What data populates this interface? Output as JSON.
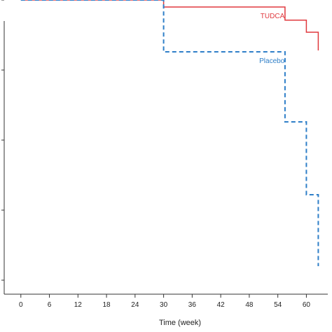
{
  "chart_data": {
    "type": "line",
    "title": "",
    "xlabel": "Time (week)",
    "ylabel": "",
    "xlim": [
      -3.5,
      64.5
    ],
    "ylim": [
      0.0,
      1.0
    ],
    "x_ticks": [
      0,
      6,
      12,
      18,
      24,
      30,
      36,
      42,
      48,
      54,
      60
    ],
    "y_ticks": [
      0.0,
      0.25,
      0.5,
      0.75,
      1.0
    ],
    "grid": false,
    "legend": "none",
    "series": [
      {
        "name": "TUDCA",
        "color": "#e0393e",
        "dash": false,
        "points": [
          [
            0,
            1.0
          ],
          [
            30,
            1.0
          ],
          [
            30,
            0.975
          ],
          [
            55.5,
            0.975
          ],
          [
            55.5,
            0.928
          ],
          [
            60,
            0.928
          ],
          [
            60,
            0.885
          ],
          [
            62.5,
            0.885
          ],
          [
            62.5,
            0.82
          ]
        ]
      },
      {
        "name": "Placebo",
        "color": "#2f7fc8",
        "dash": true,
        "points": [
          [
            0,
            1.0
          ],
          [
            30,
            1.0
          ],
          [
            30,
            0.815
          ],
          [
            55.5,
            0.815
          ],
          [
            55.5,
            0.565
          ],
          [
            60,
            0.565
          ],
          [
            60,
            0.305
          ],
          [
            62.5,
            0.305
          ],
          [
            62.5,
            0.05
          ]
        ]
      }
    ]
  }
}
